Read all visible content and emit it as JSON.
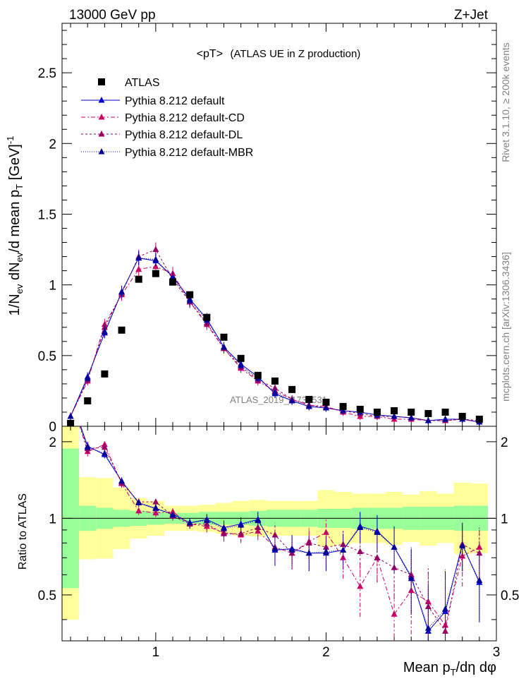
{
  "header": {
    "energy": "13000 GeV pp",
    "process": "Z+Jet",
    "plot_title": "<pT>",
    "plot_subtitle": "(ATLAS UE in Z production)",
    "watermark": "ATLAS_2019_I1736531"
  },
  "side_labels": {
    "rivet": "Rivet 3.1.10, ≥ 200k events",
    "mcplots": "mcplots.cern.ch [arXiv:1306.3436]"
  },
  "axes": {
    "main_ylabel": {
      "a": "1/N",
      "a_sub": "ev",
      "b": " dN",
      "b_sub": "ev",
      "c": "/d mean p",
      "c_sub": "T",
      "d": " [GeV]",
      "d_sup": "-1"
    },
    "ratio_ylabel": "Ratio to ATLAS",
    "xlabel": {
      "a": "Mean p",
      "a_sub": "T",
      "b": "/dη dφ"
    }
  },
  "chart_data": {
    "type": "scatter",
    "xlim": [
      0.45,
      3.0
    ],
    "main_ylim": [
      0,
      2.85
    ],
    "ratio_ylim": [
      0.33,
      2.3
    ],
    "xticks": [
      1,
      2,
      3
    ],
    "xtick_labels": [
      "1",
      "2",
      "3"
    ],
    "main_yticks": [
      0,
      0.5,
      1,
      1.5,
      2,
      2.5
    ],
    "main_ytick_labels": [
      "0",
      "0.5",
      "1",
      "1.5",
      "2",
      "2.5"
    ],
    "ratio_yticks": [
      0.5,
      1,
      2
    ],
    "ratio_ytick_labels": [
      "0.5",
      "1",
      "2"
    ],
    "legend_position": "top-left",
    "x": [
      0.5,
      0.6,
      0.7,
      0.8,
      0.9,
      1.0,
      1.1,
      1.2,
      1.3,
      1.4,
      1.5,
      1.6,
      1.7,
      1.8,
      1.9,
      2.0,
      2.1,
      2.2,
      2.3,
      2.4,
      2.5,
      2.6,
      2.7,
      2.8,
      2.9
    ],
    "series": [
      {
        "name": "ATLAS",
        "color": "#000000",
        "marker": "square",
        "values": [
          0.02,
          0.18,
          0.37,
          0.68,
          1.04,
          1.08,
          1.02,
          0.93,
          0.77,
          0.63,
          0.48,
          0.36,
          0.32,
          0.26,
          0.19,
          0.17,
          0.14,
          0.12,
          0.1,
          0.11,
          0.1,
          0.09,
          0.1,
          0.07,
          0.05
        ]
      },
      {
        "name": "Pythia 8.212 default",
        "color": "#0000cc",
        "marker": "triangle",
        "dash": "",
        "values": [
          0.07,
          0.35,
          0.66,
          0.95,
          1.19,
          1.17,
          1.06,
          0.9,
          0.76,
          0.56,
          0.44,
          0.35,
          0.23,
          0.18,
          0.14,
          0.13,
          0.11,
          0.1,
          0.08,
          0.07,
          0.06,
          0.04,
          0.05,
          0.05,
          0.03
        ]
      },
      {
        "name": "Pythia 8.212 default-CD",
        "color": "#cc0066",
        "marker": "triangle",
        "dash": "6,3,2,3",
        "values": [
          0.07,
          0.32,
          0.72,
          0.93,
          1.11,
          1.13,
          1.08,
          0.88,
          0.72,
          0.55,
          0.41,
          0.32,
          0.25,
          0.19,
          0.15,
          0.14,
          0.1,
          0.07,
          0.07,
          0.05,
          0.05,
          0.04,
          0.04,
          0.05,
          0.03
        ]
      },
      {
        "name": "Pythia 8.212 default-DL",
        "color": "#990066",
        "marker": "triangle",
        "dash": "3,3",
        "values": [
          0.07,
          0.33,
          0.7,
          0.94,
          1.2,
          1.25,
          1.04,
          0.88,
          0.73,
          0.55,
          0.42,
          0.33,
          0.27,
          0.19,
          0.15,
          0.13,
          0.11,
          0.09,
          0.07,
          0.07,
          0.06,
          0.04,
          0.04,
          0.05,
          0.04
        ]
      },
      {
        "name": "Pythia 8.212 default-MBR",
        "color": "#000099",
        "marker": "triangle",
        "dash": "1,2",
        "values": [
          0.07,
          0.34,
          0.67,
          0.95,
          1.19,
          1.18,
          1.05,
          0.89,
          0.75,
          0.56,
          0.43,
          0.34,
          0.24,
          0.18,
          0.14,
          0.13,
          0.11,
          0.1,
          0.08,
          0.07,
          0.06,
          0.04,
          0.05,
          0.05,
          0.03
        ]
      }
    ],
    "ratio_series": [
      {
        "name": "Pythia 8.212 default",
        "values": [
          3.0,
          1.92,
          1.78,
          1.4,
          1.15,
          1.09,
          1.04,
          0.96,
          0.99,
          0.92,
          0.95,
          0.99,
          0.75,
          0.76,
          0.73,
          0.73,
          0.75,
          0.93,
          0.89,
          0.77,
          0.59,
          0.36,
          0.43,
          0.79,
          0.56
        ]
      },
      {
        "name": "Pythia 8.212 default-CD",
        "values": [
          3.0,
          1.83,
          1.95,
          1.37,
          1.07,
          1.05,
          1.06,
          0.95,
          0.93,
          0.88,
          0.86,
          0.89,
          0.77,
          0.73,
          0.81,
          0.88,
          0.7,
          0.54,
          0.7,
          0.42,
          0.52,
          0.47,
          0.38,
          0.71,
          0.77
        ]
      },
      {
        "name": "Pythia 8.212 default-DL",
        "values": [
          3.0,
          1.88,
          1.9,
          1.38,
          1.16,
          1.16,
          1.02,
          0.95,
          0.95,
          0.87,
          0.87,
          0.92,
          0.86,
          0.73,
          0.8,
          0.77,
          0.79,
          0.74,
          0.7,
          0.64,
          0.6,
          0.45,
          0.36,
          0.79,
          0.73
        ]
      },
      {
        "name": "Pythia 8.212 default-MBR",
        "values": [
          3.0,
          1.9,
          1.8,
          1.4,
          1.15,
          1.1,
          1.03,
          0.96,
          0.98,
          0.91,
          0.94,
          0.98,
          0.76,
          0.75,
          0.73,
          0.74,
          0.75,
          0.92,
          0.88,
          0.77,
          0.58,
          0.37,
          0.44,
          0.78,
          0.57
        ]
      }
    ],
    "ratio_errors": [
      0.0,
      0.08,
      0.06,
      0.05,
      0.04,
      0.04,
      0.04,
      0.04,
      0.05,
      0.06,
      0.06,
      0.07,
      0.1,
      0.1,
      0.11,
      0.11,
      0.12,
      0.13,
      0.14,
      0.16,
      0.17,
      0.18,
      0.19,
      0.17,
      0.17
    ],
    "band_edges": [
      0.45,
      0.55,
      0.65,
      0.75,
      0.85,
      0.95,
      1.05,
      1.15,
      1.25,
      1.35,
      1.45,
      1.55,
      1.65,
      1.75,
      1.85,
      1.95,
      2.05,
      2.15,
      2.25,
      2.35,
      2.45,
      2.55,
      2.65,
      2.75,
      2.85,
      2.95
    ],
    "band_stat": [
      1.88,
      1.12,
      1.1,
      1.08,
      1.07,
      1.06,
      1.05,
      1.05,
      1.06,
      1.06,
      1.06,
      1.07,
      1.08,
      1.08,
      1.08,
      1.09,
      1.09,
      1.1,
      1.1,
      1.1,
      1.11,
      1.11,
      1.11,
      1.12,
      1.12
    ],
    "band_total": [
      2.5,
      1.45,
      1.44,
      1.32,
      1.2,
      1.17,
      1.12,
      1.12,
      1.13,
      1.15,
      1.17,
      1.18,
      1.17,
      1.17,
      1.17,
      1.29,
      1.27,
      1.25,
      1.25,
      1.27,
      1.24,
      1.28,
      1.25,
      1.38,
      1.37
    ],
    "band_stat_color": "#99ff99",
    "band_total_color": "#ffff99"
  }
}
